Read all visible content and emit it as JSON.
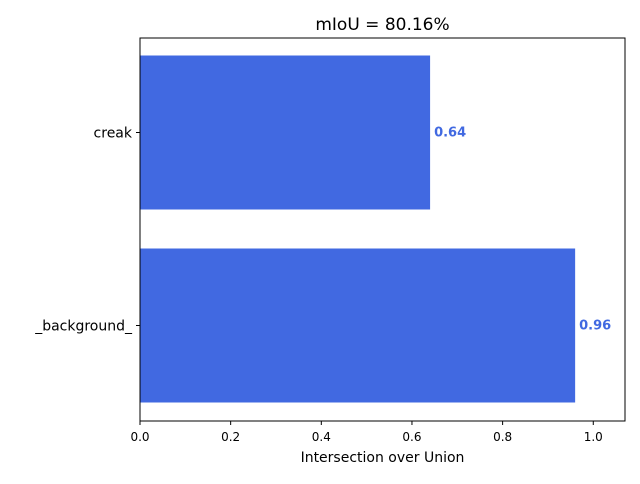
{
  "chart_data": {
    "type": "bar",
    "orientation": "horizontal",
    "title": "mIoU = 80.16%",
    "xlabel": "Intersection over Union",
    "ylabel": "",
    "categories": [
      "creak",
      "_background_"
    ],
    "values": [
      0.64,
      0.96
    ],
    "value_labels": [
      "0.64",
      "0.96"
    ],
    "xlim": [
      0,
      1.07
    ],
    "xticks": [
      0.0,
      0.2,
      0.4,
      0.6,
      0.8,
      1.0
    ],
    "xtick_labels": [
      "0.0",
      "0.2",
      "0.4",
      "0.6",
      "0.8",
      "1.0"
    ],
    "grid": false,
    "legend": "none",
    "bar_color": "#4169e1",
    "value_label_color": "#4169e1"
  }
}
